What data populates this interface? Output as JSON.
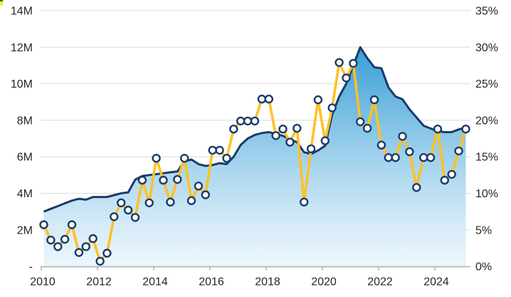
{
  "chart_data": {
    "type": "combo-area-line",
    "title": "",
    "xlabel": "",
    "ylabel_left": "",
    "ylabel_right": "",
    "grid": true,
    "legend": false,
    "x_axis": {
      "tick_labels": [
        "2010",
        "2012",
        "2014",
        "2016",
        "2018",
        "2020",
        "2022",
        "2024"
      ]
    },
    "left_axis": {
      "min": 0,
      "max": 14,
      "tick_labels": [
        "-",
        "2M",
        "4M",
        "6M",
        "8M",
        "10M",
        "12M",
        "14M"
      ]
    },
    "right_axis": {
      "min": 0,
      "max": 35,
      "tick_labels": [
        "0%",
        "5%",
        "10%",
        "15%",
        "20%",
        "25%",
        "30%",
        "35%"
      ]
    },
    "categories": [
      "2010 Q1",
      "2010 Q2",
      "2010 Q3",
      "2010 Q4",
      "2011 Q1",
      "2011 Q2",
      "2011 Q3",
      "2011 Q4",
      "2012 Q1",
      "2012 Q2",
      "2012 Q3",
      "2012 Q4",
      "2013 Q1",
      "2013 Q2",
      "2013 Q3",
      "2013 Q4",
      "2014 Q1",
      "2014 Q2",
      "2014 Q3",
      "2014 Q4",
      "2015 Q1",
      "2015 Q2",
      "2015 Q3",
      "2015 Q4",
      "2016 Q1",
      "2016 Q2",
      "2016 Q3",
      "2016 Q4",
      "2017 Q1",
      "2017 Q2",
      "2017 Q3",
      "2017 Q4",
      "2018 Q1",
      "2018 Q2",
      "2018 Q3",
      "2018 Q4",
      "2019 Q1",
      "2019 Q2",
      "2019 Q3",
      "2019 Q4",
      "2020 Q1",
      "2020 Q2",
      "2020 Q3",
      "2020 Q4",
      "2021 Q1",
      "2021 Q2",
      "2021 Q3",
      "2021 Q4",
      "2022 Q1",
      "2022 Q2",
      "2022 Q3",
      "2022 Q4",
      "2023 Q1",
      "2023 Q2",
      "2023 Q3",
      "2023 Q4",
      "2024 Q1",
      "2024 Q2",
      "2024 Q3",
      "2024 Q4",
      "2025 Q1"
    ],
    "series": [
      {
        "name": "area_millions",
        "render": "area",
        "axis": "left",
        "unit": "M",
        "values": [
          3.0,
          3.15,
          3.3,
          3.45,
          3.6,
          3.7,
          3.65,
          3.8,
          3.8,
          3.8,
          3.9,
          4.0,
          4.05,
          4.75,
          4.95,
          5.0,
          5.05,
          5.1,
          5.15,
          5.2,
          5.75,
          5.85,
          5.6,
          5.5,
          5.55,
          5.65,
          5.6,
          6.0,
          6.65,
          7.0,
          7.2,
          7.3,
          7.35,
          7.25,
          7.15,
          6.95,
          6.8,
          6.25,
          6.15,
          6.35,
          6.6,
          8.3,
          9.3,
          10.0,
          11.0,
          12.0,
          11.4,
          10.9,
          10.85,
          9.8,
          9.3,
          9.15,
          8.6,
          8.15,
          7.7,
          7.55,
          7.4,
          7.35,
          7.35,
          7.5,
          7.6
        ]
      },
      {
        "name": "line_percent",
        "render": "line-markers",
        "axis": "right",
        "unit": "%",
        "values": [
          5.7,
          3.6,
          2.7,
          3.7,
          5.7,
          1.9,
          2.7,
          3.8,
          0.7,
          1.8,
          6.8,
          8.7,
          7.7,
          6.7,
          11.8,
          8.7,
          14.8,
          11.8,
          8.8,
          11.9,
          14.8,
          9.0,
          11.0,
          9.8,
          15.9,
          15.9,
          14.8,
          18.8,
          19.9,
          19.9,
          19.9,
          22.9,
          22.9,
          17.9,
          18.8,
          17.0,
          18.9,
          8.8,
          16.1,
          22.8,
          17.2,
          21.7,
          27.9,
          25.8,
          27.8,
          19.8,
          18.9,
          22.8,
          16.6,
          14.9,
          14.9,
          17.8,
          15.7,
          10.8,
          14.9,
          14.9,
          18.8,
          11.8,
          12.6,
          15.8,
          18.8
        ]
      }
    ]
  },
  "colors": {
    "background": "#FFFFFF",
    "navy_line": "#1A3A68",
    "gold_line": "#FFC125",
    "marker_fill": "#FFFFFF",
    "marker_ring": "#1A3A68",
    "gridline": "#D9D9D9",
    "axis_line": "#ACACAC",
    "label_text": "#262626",
    "area_top": "#349BD4",
    "area_mid": "#8FC9E9",
    "area_low": "#CDE7F5",
    "area_bottom": "#E9F5FC",
    "corner_dark": "#5A5D0A",
    "corner_yellow": "#F2EF3A"
  }
}
